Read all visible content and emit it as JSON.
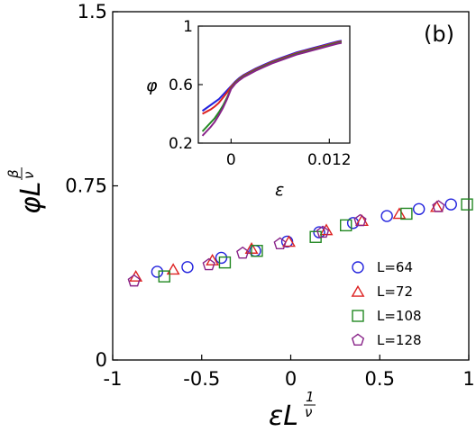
{
  "chart_data": [
    {
      "type": "scatter",
      "panel_label": "(b)",
      "xlabel": "εL^(1/ν)",
      "ylabel": "φL^(β/ν)",
      "xlim": [
        -1,
        1
      ],
      "ylim": [
        0,
        1.5
      ],
      "xticks": [
        "-1",
        "-0.5",
        "0",
        "0.5",
        "1"
      ],
      "yticks": [
        "0",
        "0.75",
        "1.5"
      ],
      "legend_position": "lower-right",
      "series": [
        {
          "name": "L=64",
          "marker": "circle",
          "color": "#2222dd",
          "points": [
            [
              -0.75,
              0.38
            ],
            [
              -0.58,
              0.4
            ],
            [
              -0.39,
              0.44
            ],
            [
              -0.2,
              0.47
            ],
            [
              -0.02,
              0.51
            ],
            [
              0.16,
              0.55
            ],
            [
              0.35,
              0.59
            ],
            [
              0.54,
              0.62
            ],
            [
              0.72,
              0.65
            ],
            [
              0.9,
              0.67
            ]
          ]
        },
        {
          "name": "L=72",
          "marker": "triangle",
          "color": "#dd2222",
          "points": [
            [
              -0.87,
              0.36
            ],
            [
              -0.66,
              0.39
            ],
            [
              -0.44,
              0.43
            ],
            [
              -0.22,
              0.48
            ],
            [
              -0.01,
              0.51
            ],
            [
              0.2,
              0.56
            ],
            [
              0.4,
              0.6
            ],
            [
              0.61,
              0.63
            ],
            [
              0.82,
              0.66
            ]
          ]
        },
        {
          "name": "L=108",
          "marker": "square",
          "color": "#228822",
          "points": [
            [
              -0.71,
              0.36
            ],
            [
              -0.37,
              0.42
            ],
            [
              -0.19,
              0.47
            ],
            [
              0.14,
              0.53
            ],
            [
              0.31,
              0.58
            ],
            [
              0.65,
              0.63
            ],
            [
              0.99,
              0.67
            ]
          ]
        },
        {
          "name": "L=128",
          "marker": "pentagon",
          "color": "#882288",
          "points": [
            [
              -0.88,
              0.34
            ],
            [
              -0.46,
              0.41
            ],
            [
              -0.27,
              0.46
            ],
            [
              -0.06,
              0.5
            ],
            [
              0.18,
              0.55
            ],
            [
              0.39,
              0.6
            ],
            [
              0.83,
              0.66
            ]
          ]
        }
      ]
    },
    {
      "type": "line",
      "inset": true,
      "xlabel": "ε",
      "ylabel": "φ",
      "xlim": [
        -0.004,
        0.0145
      ],
      "ylim": [
        0.2,
        1.0
      ],
      "xticks": [
        "0",
        "0.012"
      ],
      "yticks": [
        "0.2",
        "0.6",
        "1"
      ],
      "x": [
        -0.0035,
        -0.003,
        -0.0025,
        -0.002,
        -0.0015,
        -0.001,
        -0.0005,
        0,
        0.0005,
        0.001,
        0.0015,
        0.002,
        0.003,
        0.004,
        0.005,
        0.006,
        0.007,
        0.008,
        0.009,
        0.01,
        0.011,
        0.012,
        0.013,
        0.0135
      ],
      "series": [
        {
          "color": "#2222dd",
          "values": [
            0.42,
            0.44,
            0.46,
            0.48,
            0.5,
            0.53,
            0.56,
            0.59,
            0.62,
            0.645,
            0.665,
            0.68,
            0.71,
            0.735,
            0.76,
            0.78,
            0.8,
            0.82,
            0.835,
            0.85,
            0.865,
            0.88,
            0.895,
            0.9
          ]
        },
        {
          "color": "#dd2222",
          "values": [
            0.4,
            0.415,
            0.43,
            0.45,
            0.475,
            0.51,
            0.545,
            0.585,
            0.615,
            0.64,
            0.66,
            0.675,
            0.705,
            0.73,
            0.755,
            0.775,
            0.795,
            0.815,
            0.83,
            0.845,
            0.86,
            0.875,
            0.89,
            0.895
          ]
        },
        {
          "color": "#228822",
          "values": [
            0.28,
            0.31,
            0.34,
            0.37,
            0.41,
            0.455,
            0.51,
            0.575,
            0.61,
            0.635,
            0.655,
            0.67,
            0.7,
            0.725,
            0.75,
            0.77,
            0.79,
            0.81,
            0.825,
            0.84,
            0.855,
            0.87,
            0.885,
            0.89
          ]
        },
        {
          "color": "#882288",
          "values": [
            0.25,
            0.28,
            0.31,
            0.345,
            0.39,
            0.44,
            0.5,
            0.57,
            0.605,
            0.63,
            0.65,
            0.665,
            0.695,
            0.72,
            0.745,
            0.765,
            0.785,
            0.805,
            0.82,
            0.835,
            0.85,
            0.865,
            0.88,
            0.885
          ]
        }
      ]
    }
  ]
}
